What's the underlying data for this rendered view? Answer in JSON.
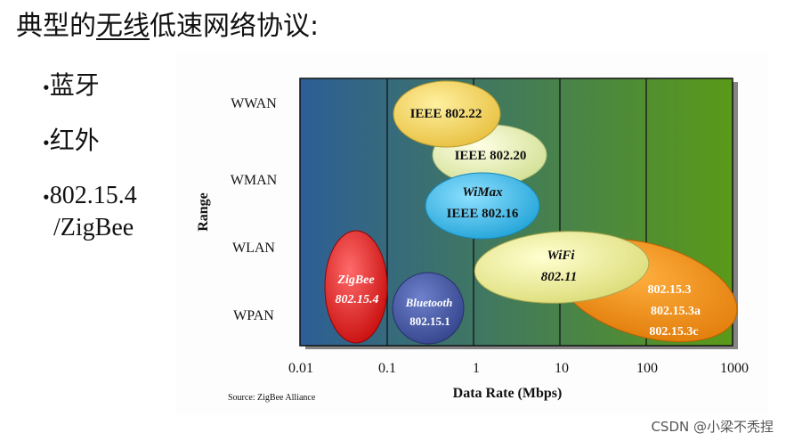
{
  "slide": {
    "title_prefix": "典型的",
    "title_underlined": "无线",
    "title_suffix": "低速网络协议:",
    "bullets": [
      {
        "bullet": "•",
        "text": "蓝牙",
        "text2": ""
      },
      {
        "bullet": "•",
        "text": "红外",
        "text2": ""
      },
      {
        "bullet": "•",
        "text": "802.15.4",
        "text2": "/ZigBee"
      }
    ]
  },
  "diagram": {
    "y_axis_title": "Range",
    "x_axis_title": "Data Rate (Mbps)",
    "source": "Source: ZigBee Alliance",
    "range_labels": [
      "WWAN",
      "WMAN",
      "WLAN",
      "WPAN"
    ],
    "rate_ticks": [
      "0.01",
      "0.1",
      "1",
      "10",
      "100",
      "1000"
    ],
    "protocols": [
      {
        "id": "ieee-802-20",
        "line1": "IEEE 802.20",
        "line2": "",
        "fill": "#e4ecb4",
        "text_color": "#111111"
      },
      {
        "id": "ieee-802-22",
        "line1": "IEEE 802.22",
        "line2": "",
        "fill": "#f2d060",
        "text_color": "#111111"
      },
      {
        "id": "wimax",
        "line1": "WiMax",
        "line2": "IEEE 802.16",
        "fill": "#3fb8e8",
        "text_color": "#111111"
      },
      {
        "id": "bluetooth",
        "line1": "Bluetooth",
        "line2": "802.15.1",
        "fill": "#4a5aa8",
        "text_color": "#ffffff"
      },
      {
        "id": "zigbee",
        "line1": "ZigBee",
        "line2": "802.15.4",
        "fill": "#dd1a1a",
        "text_color": "#ffffff"
      },
      {
        "id": "uwb",
        "line1": "802.15.3",
        "line2": "802.15.3a",
        "line3": "802.15.3c",
        "fill": "#f09018",
        "text_color": "#ffffff"
      },
      {
        "id": "wifi",
        "line1": "WiFi",
        "line2": "802.11",
        "fill": "#ecec96",
        "text_color": "#111111"
      }
    ],
    "colors": {
      "plot_left": "#2d5e96",
      "plot_right": "#5a9a18"
    }
  },
  "watermark": "CSDN @小梁不秃捏"
}
